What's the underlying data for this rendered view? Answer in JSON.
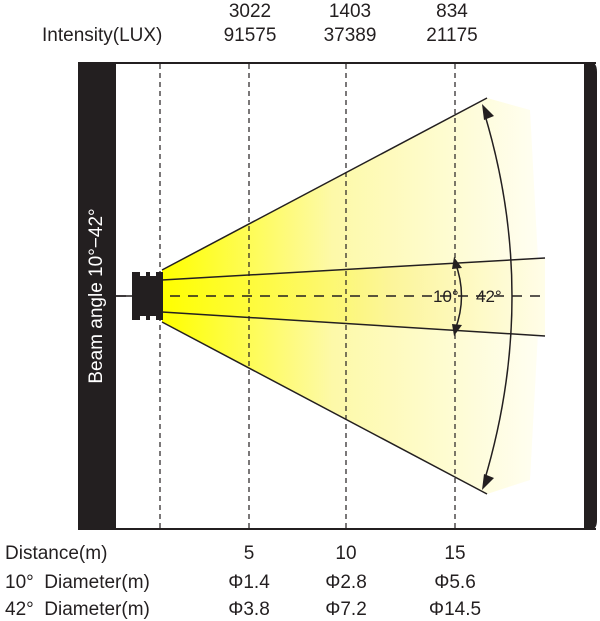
{
  "header": {
    "intensity_label": "Intensity(LUX)",
    "intensity_10": [
      "3022",
      "1403",
      "834"
    ],
    "intensity_42": [
      "91575",
      "37389",
      "21175"
    ]
  },
  "diagram": {
    "side_label": "Beam angle 10°−42°",
    "angle_inner": "10°",
    "angle_outer": "42°",
    "beam_color": "#ffff00",
    "frame_color": "#231f20"
  },
  "table": {
    "distance_label": "Distance(m)",
    "distances": [
      "5",
      "10",
      "15"
    ],
    "row10_label": "10°  Diameter(m)",
    "row10": [
      "Φ1.4",
      "Φ2.8",
      "Φ5.6"
    ],
    "row42_label": "42°  Diameter(m)",
    "row42": [
      "Φ3.8",
      "Φ7.2",
      "Φ14.5"
    ]
  }
}
